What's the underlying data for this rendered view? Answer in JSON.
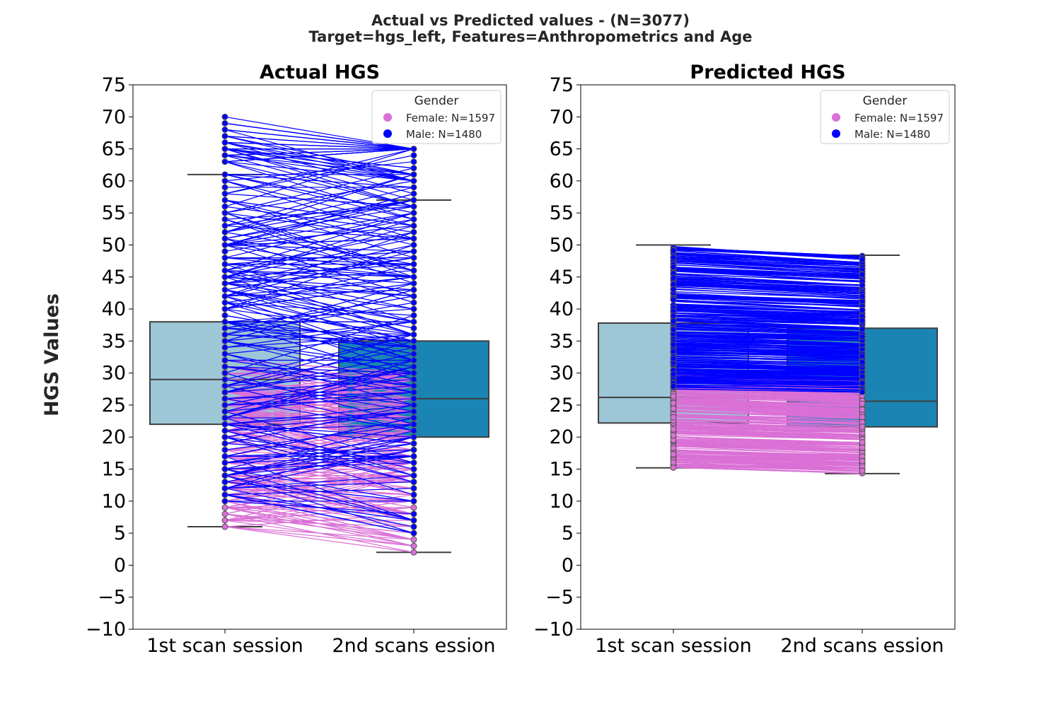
{
  "figure": {
    "suptitle_line1": "Actual vs Predicted values - (N=3077)",
    "suptitle_line2": "Target=hgs_left, Features=Anthropometrics and Age",
    "ylabel": "HGS Values"
  },
  "colors": {
    "female": "#da70d6",
    "male": "#0000ff",
    "box_first": "#9dc6d6",
    "box_second": "#1a85b5",
    "box_edge": "#3f3f3f"
  },
  "chart_data": [
    {
      "type": "box+paired-line",
      "title": "Actual HGS",
      "categories": [
        "1st scan session",
        "2nd scans ession"
      ],
      "ylim": [
        -10,
        75
      ],
      "yticks": [
        -10,
        -5,
        0,
        5,
        10,
        15,
        20,
        25,
        30,
        35,
        40,
        45,
        50,
        55,
        60,
        65,
        70,
        75
      ],
      "yticks_labels": [
        "−10",
        "−5",
        "0",
        "5",
        "10",
        "15",
        "20",
        "25",
        "30",
        "35",
        "40",
        "45",
        "50",
        "55",
        "60",
        "65",
        "70",
        "75"
      ],
      "grid": false,
      "legend": {
        "title": "Gender",
        "position": "top-right",
        "entries": [
          "Female: N=1597",
          "Male: N=1480"
        ]
      },
      "boxes": [
        {
          "category": "1st scan session",
          "q1": 22,
          "median": 29,
          "q3": 38,
          "whisker_low": 6,
          "whisker_high": 61
        },
        {
          "category": "2nd scans ession",
          "q1": 20,
          "median": 26,
          "q3": 35,
          "whisker_low": 2,
          "whisker_high": 57
        }
      ],
      "series": [
        {
          "name": "Female: N=1597",
          "first_range": [
            6,
            32
          ],
          "second_range": [
            2,
            30
          ]
        },
        {
          "name": "Male: N=1480",
          "first_range": [
            10,
            70
          ],
          "second_range": [
            5,
            65
          ]
        }
      ]
    },
    {
      "type": "box+paired-line",
      "title": "Predicted HGS",
      "categories": [
        "1st scan session",
        "2nd scans ession"
      ],
      "ylim": [
        -10,
        75
      ],
      "yticks": [
        -10,
        -5,
        0,
        5,
        10,
        15,
        20,
        25,
        30,
        35,
        40,
        45,
        50,
        55,
        60,
        65,
        70,
        75
      ],
      "yticks_labels": [
        "−10",
        "−5",
        "0",
        "5",
        "10",
        "15",
        "20",
        "25",
        "30",
        "35",
        "40",
        "45",
        "50",
        "55",
        "60",
        "65",
        "70",
        "75"
      ],
      "grid": false,
      "legend": {
        "title": "Gender",
        "position": "top-right",
        "entries": [
          "Female: N=1597",
          "Male: N=1480"
        ]
      },
      "boxes": [
        {
          "category": "1st scan session",
          "q1": 22.2,
          "median": 26.2,
          "q3": 37.8,
          "whisker_low": 15.2,
          "whisker_high": 50
        },
        {
          "category": "2nd scans ession",
          "q1": 21.6,
          "median": 25.6,
          "q3": 37,
          "whisker_low": 14.3,
          "whisker_high": 48.4
        }
      ],
      "series": [
        {
          "name": "Female: N=1597",
          "first_range": [
            15.2,
            30
          ],
          "second_range": [
            14.3,
            29
          ]
        },
        {
          "name": "Male: N=1480",
          "first_range": [
            27.5,
            50
          ],
          "second_range": [
            27,
            48.4
          ]
        }
      ]
    }
  ]
}
